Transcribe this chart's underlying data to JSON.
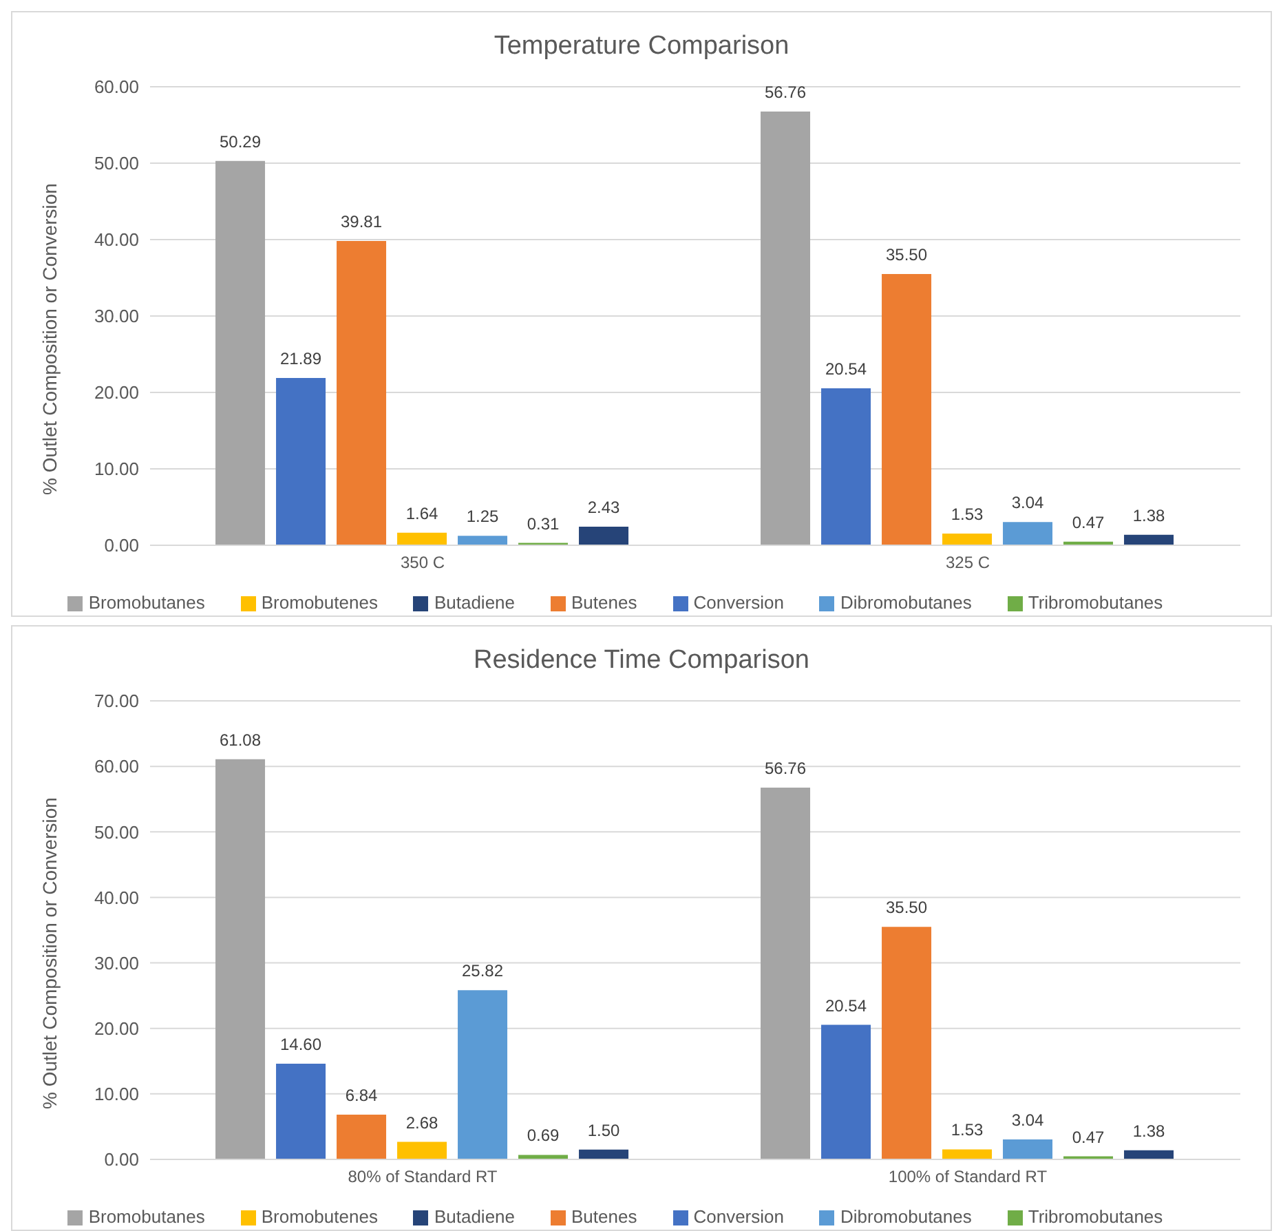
{
  "chart_data": [
    {
      "type": "bar",
      "title": "Temperature Comparison",
      "ylabel": "% Outlet Composition or Conversion",
      "categories": [
        "350 C",
        "325 C"
      ],
      "ylim": [
        0,
        60
      ],
      "yticks": [
        {
          "value": 0,
          "label": "0.00"
        },
        {
          "value": 10,
          "label": "10.00"
        },
        {
          "value": 20,
          "label": "20.00"
        },
        {
          "value": 30,
          "label": "30.00"
        },
        {
          "value": 40,
          "label": "40.00"
        },
        {
          "value": 50,
          "label": "50.00"
        },
        {
          "value": 60,
          "label": "60.00"
        }
      ],
      "grid": "y",
      "legend": "bottom",
      "series": [
        {
          "name": "Bromobutanes",
          "color": "#a5a5a5",
          "values": [
            50.29,
            56.76
          ],
          "value_labels": [
            "50.29",
            "56.76"
          ]
        },
        {
          "name": "Conversion",
          "color": "#4472c4",
          "values": [
            21.89,
            20.54
          ],
          "value_labels": [
            "21.89",
            "20.54"
          ]
        },
        {
          "name": "Butenes",
          "color": "#ed7d31",
          "values": [
            39.81,
            35.5
          ],
          "value_labels": [
            "39.81",
            "35.50"
          ]
        },
        {
          "name": "Bromobutenes",
          "color": "#ffc000",
          "values": [
            1.64,
            1.53
          ],
          "value_labels": [
            "1.64",
            "1.53"
          ]
        },
        {
          "name": "Dibromobutanes",
          "color": "#5b9bd5",
          "values": [
            1.25,
            3.04
          ],
          "value_labels": [
            "1.25",
            "3.04"
          ]
        },
        {
          "name": "Tribromobutanes",
          "color": "#70ad47",
          "values": [
            0.31,
            0.47
          ],
          "value_labels": [
            "0.31",
            "0.47"
          ]
        },
        {
          "name": "Butadiene",
          "color": "#264478",
          "values": [
            2.43,
            1.38
          ],
          "value_labels": [
            "2.43",
            "1.38"
          ]
        }
      ]
    },
    {
      "type": "bar",
      "title": "Residence Time Comparison",
      "ylabel": "% Outlet Composition or Conversion",
      "categories": [
        "80% of Standard RT",
        "100% of Standard RT"
      ],
      "ylim": [
        0,
        70
      ],
      "yticks": [
        {
          "value": 0,
          "label": "0.00"
        },
        {
          "value": 10,
          "label": "10.00"
        },
        {
          "value": 20,
          "label": "20.00"
        },
        {
          "value": 30,
          "label": "30.00"
        },
        {
          "value": 40,
          "label": "40.00"
        },
        {
          "value": 50,
          "label": "50.00"
        },
        {
          "value": 60,
          "label": "60.00"
        },
        {
          "value": 70,
          "label": "70.00"
        }
      ],
      "grid": "y",
      "legend": "bottom",
      "series": [
        {
          "name": "Bromobutanes",
          "color": "#a5a5a5",
          "values": [
            61.08,
            56.76
          ],
          "value_labels": [
            "61.08",
            "56.76"
          ]
        },
        {
          "name": "Conversion",
          "color": "#4472c4",
          "values": [
            14.6,
            20.54
          ],
          "value_labels": [
            "14.60",
            "20.54"
          ]
        },
        {
          "name": "Butenes",
          "color": "#ed7d31",
          "values": [
            6.84,
            35.5
          ],
          "value_labels": [
            "6.84",
            "35.50"
          ]
        },
        {
          "name": "Bromobutenes",
          "color": "#ffc000",
          "values": [
            2.68,
            1.53
          ],
          "value_labels": [
            "2.68",
            "1.53"
          ]
        },
        {
          "name": "Dibromobutanes",
          "color": "#5b9bd5",
          "values": [
            25.82,
            3.04
          ],
          "value_labels": [
            "25.82",
            "3.04"
          ]
        },
        {
          "name": "Tribromobutanes",
          "color": "#70ad47",
          "values": [
            0.69,
            0.47
          ],
          "value_labels": [
            "0.69",
            "0.47"
          ]
        },
        {
          "name": "Butadiene",
          "color": "#264478",
          "values": [
            1.5,
            1.38
          ],
          "value_labels": [
            "1.50",
            "1.38"
          ]
        }
      ]
    }
  ]
}
